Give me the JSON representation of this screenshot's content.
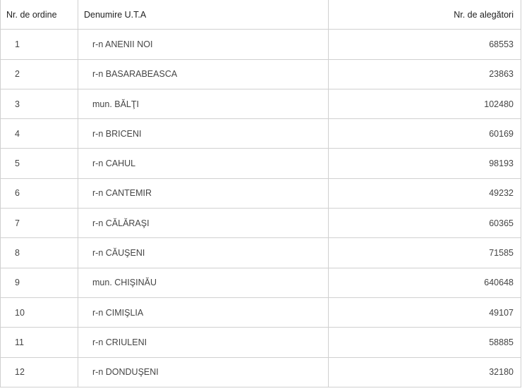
{
  "table": {
    "headers": [
      "Nr. de ordine",
      "Denumire U.T.A",
      "Nr. de alegători"
    ],
    "rows": [
      {
        "nr": "1",
        "name": "r-n ANENII NOI",
        "voters": "68553"
      },
      {
        "nr": "2",
        "name": "r-n BASARABEASCA",
        "voters": "23863"
      },
      {
        "nr": "3",
        "name": "mun. BĂLŢI",
        "voters": "102480"
      },
      {
        "nr": "4",
        "name": "r-n BRICENI",
        "voters": "60169"
      },
      {
        "nr": "5",
        "name": "r-n CAHUL",
        "voters": "98193"
      },
      {
        "nr": "6",
        "name": "r-n CANTEMIR",
        "voters": "49232"
      },
      {
        "nr": "7",
        "name": "r-n CĂLĂRAŞI",
        "voters": "60365"
      },
      {
        "nr": "8",
        "name": "r-n CĂUŞENI",
        "voters": "71585"
      },
      {
        "nr": "9",
        "name": "mun. CHIŞINĂU",
        "voters": "640648"
      },
      {
        "nr": "10",
        "name": "r-n CIMIŞLIA",
        "voters": "49107"
      },
      {
        "nr": "11",
        "name": "r-n CRIULENI",
        "voters": "58885"
      },
      {
        "nr": "12",
        "name": "r-n DONDUŞENI",
        "voters": "32180"
      }
    ]
  }
}
